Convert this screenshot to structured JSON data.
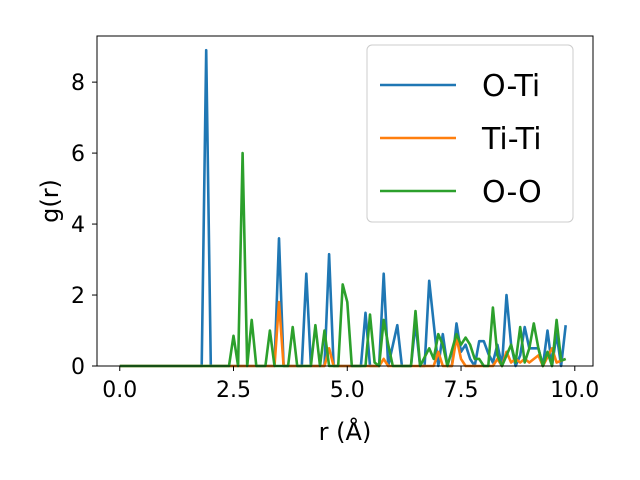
{
  "chart_data": {
    "type": "line",
    "title": "",
    "xlabel": "r (Å)",
    "ylabel": "g(r)",
    "xlim": [
      -0.5,
      10.4
    ],
    "ylim": [
      0,
      9.3
    ],
    "xticks": [
      0.0,
      2.5,
      5.0,
      7.5,
      10.0
    ],
    "xtick_labels": [
      "0.0",
      "2.5",
      "5.0",
      "7.5",
      "10.0"
    ],
    "yticks": [
      0,
      2,
      4,
      6,
      8
    ],
    "ytick_labels": [
      "0",
      "2",
      "4",
      "6",
      "8"
    ],
    "grid": false,
    "legend_position": "top-right",
    "series": [
      {
        "name": "O-Ti",
        "color": "#1f77b4",
        "points": [
          [
            0.0,
            0
          ],
          [
            1.8,
            0
          ],
          [
            1.9,
            8.9
          ],
          [
            2.0,
            0
          ],
          [
            3.4,
            0
          ],
          [
            3.5,
            3.6
          ],
          [
            3.6,
            0
          ],
          [
            4.0,
            0
          ],
          [
            4.1,
            2.6
          ],
          [
            4.2,
            0
          ],
          [
            4.5,
            0
          ],
          [
            4.6,
            3.15
          ],
          [
            4.7,
            0
          ],
          [
            5.3,
            0
          ],
          [
            5.4,
            1.5
          ],
          [
            5.5,
            0
          ],
          [
            5.7,
            0
          ],
          [
            5.8,
            2.6
          ],
          [
            5.9,
            0
          ],
          [
            6.1,
            1.15
          ],
          [
            6.2,
            0
          ],
          [
            6.4,
            0
          ],
          [
            6.5,
            1.2
          ],
          [
            6.6,
            0
          ],
          [
            6.7,
            0
          ],
          [
            6.8,
            2.4
          ],
          [
            6.9,
            1.2
          ],
          [
            7.0,
            0
          ],
          [
            7.1,
            0.9
          ],
          [
            7.2,
            0
          ],
          [
            7.3,
            0
          ],
          [
            7.4,
            1.2
          ],
          [
            7.5,
            0.4
          ],
          [
            7.6,
            0.6
          ],
          [
            7.7,
            0.2
          ],
          [
            7.8,
            0
          ],
          [
            7.9,
            0.7
          ],
          [
            8.0,
            0.7
          ],
          [
            8.1,
            0.35
          ],
          [
            8.2,
            0.1
          ],
          [
            8.3,
            0.6
          ],
          [
            8.4,
            0
          ],
          [
            8.5,
            2.0
          ],
          [
            8.6,
            0.6
          ],
          [
            8.7,
            0
          ],
          [
            8.8,
            0.3
          ],
          [
            8.9,
            1.1
          ],
          [
            9.0,
            0.5
          ],
          [
            9.1,
            0.5
          ],
          [
            9.2,
            0.5
          ],
          [
            9.3,
            0
          ],
          [
            9.4,
            1.0
          ],
          [
            9.5,
            0
          ],
          [
            9.6,
            0.9
          ],
          [
            9.7,
            0
          ],
          [
            9.8,
            1.15
          ]
        ]
      },
      {
        "name": "Ti-Ti",
        "color": "#ff7f0e",
        "points": [
          [
            0.0,
            0
          ],
          [
            3.4,
            0
          ],
          [
            3.5,
            1.8
          ],
          [
            3.6,
            0
          ],
          [
            4.5,
            0
          ],
          [
            4.6,
            0.5
          ],
          [
            4.7,
            0
          ],
          [
            5.7,
            0
          ],
          [
            5.8,
            0.2
          ],
          [
            5.9,
            0
          ],
          [
            6.9,
            0
          ],
          [
            7.0,
            0.4
          ],
          [
            7.1,
            0
          ],
          [
            7.3,
            0
          ],
          [
            7.4,
            0.8
          ],
          [
            7.5,
            0.2
          ],
          [
            7.6,
            0
          ],
          [
            8.2,
            0
          ],
          [
            8.3,
            0.2
          ],
          [
            8.4,
            0
          ],
          [
            8.5,
            0.4
          ],
          [
            8.6,
            0.1
          ],
          [
            8.7,
            0.2
          ],
          [
            8.8,
            0.1
          ],
          [
            8.9,
            0.2
          ],
          [
            9.0,
            0.1
          ],
          [
            9.2,
            0.3
          ],
          [
            9.3,
            0
          ],
          [
            9.5,
            0.5
          ],
          [
            9.6,
            0.1
          ],
          [
            9.8,
            0.2
          ]
        ]
      },
      {
        "name": "O-O",
        "color": "#2ca02c",
        "points": [
          [
            0.0,
            0
          ],
          [
            2.4,
            0
          ],
          [
            2.5,
            0.85
          ],
          [
            2.6,
            0
          ],
          [
            2.7,
            6.0
          ],
          [
            2.8,
            0
          ],
          [
            2.9,
            1.3
          ],
          [
            3.0,
            0
          ],
          [
            3.2,
            0
          ],
          [
            3.3,
            1.0
          ],
          [
            3.4,
            0
          ],
          [
            3.7,
            0
          ],
          [
            3.8,
            1.1
          ],
          [
            3.9,
            0
          ],
          [
            4.2,
            0
          ],
          [
            4.3,
            1.15
          ],
          [
            4.4,
            0
          ],
          [
            4.5,
            1.0
          ],
          [
            4.6,
            0
          ],
          [
            4.8,
            0
          ],
          [
            4.9,
            2.3
          ],
          [
            5.0,
            1.8
          ],
          [
            5.1,
            0
          ],
          [
            5.4,
            0
          ],
          [
            5.5,
            1.45
          ],
          [
            5.6,
            0.1
          ],
          [
            5.7,
            0
          ],
          [
            5.8,
            1.3
          ],
          [
            5.9,
            0.6
          ],
          [
            6.0,
            0
          ],
          [
            6.4,
            0
          ],
          [
            6.5,
            1.55
          ],
          [
            6.6,
            0
          ],
          [
            6.8,
            0.5
          ],
          [
            6.9,
            0.2
          ],
          [
            7.0,
            0.9
          ],
          [
            7.1,
            0.6
          ],
          [
            7.2,
            0
          ],
          [
            7.4,
            0.9
          ],
          [
            7.5,
            0.6
          ],
          [
            7.6,
            0.8
          ],
          [
            7.7,
            0.6
          ],
          [
            7.8,
            0.2
          ],
          [
            7.9,
            0.2
          ],
          [
            8.0,
            0
          ],
          [
            8.1,
            0
          ],
          [
            8.2,
            1.65
          ],
          [
            8.3,
            0.3
          ],
          [
            8.4,
            0
          ],
          [
            8.6,
            0.6
          ],
          [
            8.7,
            0.1
          ],
          [
            8.8,
            1.1
          ],
          [
            8.9,
            0.1
          ],
          [
            9.0,
            0.5
          ],
          [
            9.1,
            1.2
          ],
          [
            9.2,
            0.5
          ],
          [
            9.3,
            0
          ],
          [
            9.4,
            0.4
          ],
          [
            9.5,
            0
          ],
          [
            9.6,
            1.3
          ],
          [
            9.7,
            0.15
          ],
          [
            9.8,
            0.2
          ]
        ]
      }
    ]
  }
}
